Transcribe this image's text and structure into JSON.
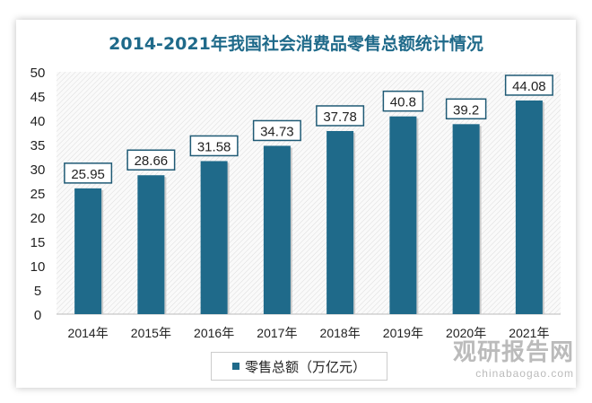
{
  "chart_data": {
    "type": "bar",
    "title": "2014-2021年我国社会消费品零售总额统计情况",
    "categories": [
      "2014年",
      "2015年",
      "2016年",
      "2017年",
      "2018年",
      "2019年",
      "2020年",
      "2021年"
    ],
    "series": [
      {
        "name": "零售总额（万亿元）",
        "values": [
          25.95,
          28.66,
          31.58,
          34.73,
          37.78,
          40.8,
          39.2,
          44.08
        ]
      }
    ],
    "data_labels": [
      "25.95",
      "28.66",
      "31.58",
      "34.73",
      "37.78",
      "40.8",
      "39.2",
      "44.08"
    ],
    "ylim": [
      0,
      50
    ],
    "yticks": [
      0,
      5,
      10,
      15,
      20,
      25,
      30,
      35,
      40,
      45,
      50
    ],
    "grid": false,
    "legend": "bottom",
    "bar_color": "#1f6a8a",
    "title_color": "#1f6a8a"
  },
  "watermark": {
    "cn": "观研报告网",
    "en": "chinabaogao.com"
  }
}
